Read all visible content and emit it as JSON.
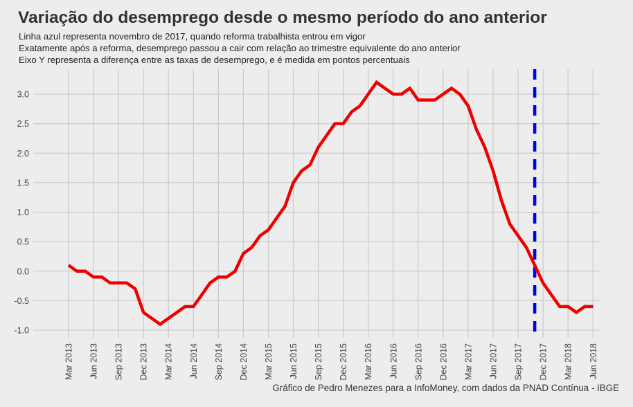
{
  "chart_data": {
    "type": "line",
    "title": "Variação do desemprego desde o mesmo período do ano anterior",
    "subtitle": [
      "Linha azul representa novembro de 2017, quando reforma trabalhista entrou em vigor",
      "Exatamente após a reforma, desemprego passou a cair com relação ao trimestre equivalente do ano anterior",
      "Eixo Y representa a diferença entre as taxas de desemprego, e é medida em pontos percentuais"
    ],
    "caption": "Gráfico de Pedro Menezes para a InfoMoney, com dados da PNAD Contínua - IBGE",
    "xlabel": "",
    "ylabel": "",
    "ylim": [
      -1.0,
      3.0
    ],
    "y_ticks": [
      "-1.0",
      "-0.5",
      "0.0",
      "0.5",
      "1.0",
      "1.5",
      "2.0",
      "2.5",
      "3.0"
    ],
    "x_ticks": [
      "Mar 2013",
      "Jun 2013",
      "Sep 2013",
      "Dec 2013",
      "Mar 2014",
      "Jun 2014",
      "Sep 2014",
      "Dec 2014",
      "Mar 2015",
      "Jun 2015",
      "Sep 2015",
      "Dec 2015",
      "Mar 2016",
      "Jun 2016",
      "Sep 2016",
      "Dec 2016",
      "Mar 2017",
      "Jun 2017",
      "Sep 2017",
      "Dec 2017",
      "Mar 2018",
      "Jun 2018"
    ],
    "x_start": "Mar 2013",
    "x_unit": "month",
    "grid": true,
    "series": [
      {
        "name": "Variação do desemprego",
        "color": "#ee0000",
        "values": [
          0.1,
          0.0,
          0.0,
          -0.1,
          -0.1,
          -0.2,
          -0.2,
          -0.2,
          -0.3,
          -0.7,
          -0.8,
          -0.9,
          -0.8,
          -0.7,
          -0.6,
          -0.6,
          -0.4,
          -0.2,
          -0.1,
          -0.1,
          0.0,
          0.3,
          0.4,
          0.6,
          0.7,
          0.9,
          1.1,
          1.5,
          1.7,
          1.8,
          2.1,
          2.3,
          2.5,
          2.5,
          2.7,
          2.8,
          3.0,
          3.2,
          3.1,
          3.0,
          3.0,
          3.1,
          2.9,
          2.9,
          2.9,
          3.0,
          3.1,
          3.0,
          2.8,
          2.4,
          2.1,
          1.7,
          1.2,
          0.8,
          0.6,
          0.4,
          0.1,
          -0.2,
          -0.4,
          -0.6,
          -0.6,
          -0.7,
          -0.6,
          -0.6
        ]
      }
    ],
    "annotations": [
      {
        "type": "vline",
        "at_month_index": 56,
        "label": "Nov 2017",
        "color": "#0000ee",
        "style": "dashed"
      }
    ],
    "colors": {
      "background": "#ededed",
      "grid": "#cccccc",
      "line": "#ee0000",
      "vline": "#0000ee"
    }
  }
}
